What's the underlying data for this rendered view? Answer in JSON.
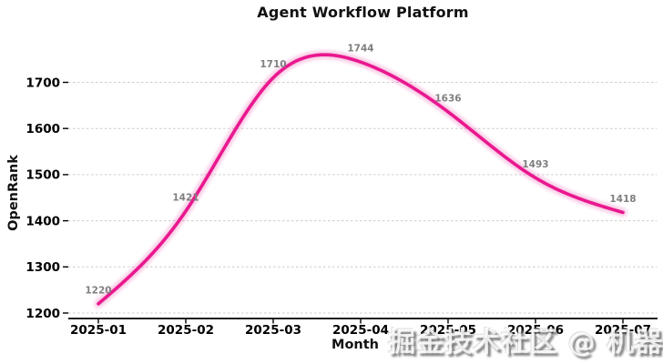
{
  "watermark": {
    "text": "掘金技术社区 @ 机器之心"
  },
  "chart_data": {
    "type": "line",
    "title": "Agent Workflow Platform",
    "xlabel": "Month",
    "ylabel": "OpenRank",
    "categories": [
      "2025-01",
      "2025-02",
      "2025-03",
      "2025-04",
      "2025-05",
      "2025-06",
      "2025-07"
    ],
    "series": [
      {
        "name": "OpenRank",
        "values": [
          1220,
          1421,
          1710,
          1744,
          1636,
          1493,
          1418
        ]
      }
    ],
    "data_labels": [
      "1220",
      "1421",
      "1710",
      "1744",
      "1636",
      "1493",
      "1418"
    ],
    "yticks": [
      1200,
      1300,
      1400,
      1500,
      1600,
      1700
    ],
    "ylim": [
      1187,
      1790
    ],
    "grid": true,
    "grid_style": "dashed",
    "legend_position": "none",
    "smooth": true,
    "line_color": "#e9188f",
    "glow_color": "rgba(233,24,144,0.25)",
    "data_label_color": "#7f7f7f",
    "tick_label_color": "#000000",
    "grid_color": "#cccccc",
    "axis_color": "#000000"
  }
}
